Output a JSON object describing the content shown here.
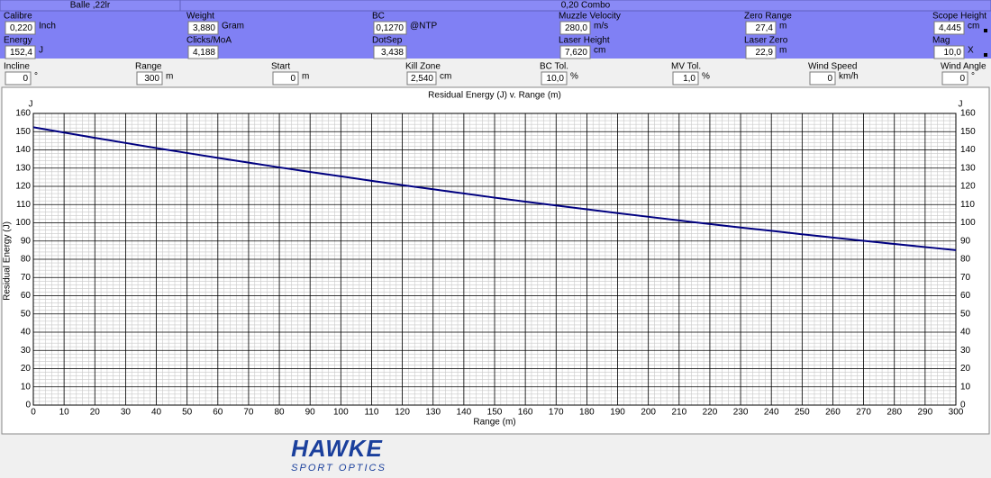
{
  "top_bar": [
    "Balle ,22lr",
    "0,20 Combo"
  ],
  "blue_fields": [
    {
      "label": "Calibre",
      "value": "0,220",
      "unit": "Inch"
    },
    {
      "label": "Weight",
      "value": "3,880",
      "unit": "Gram"
    },
    {
      "label": "BC",
      "value": "0,1270",
      "unit": "@NTP"
    },
    {
      "label": "Muzzle Velocity",
      "value": "280,0",
      "unit": "m/s"
    },
    {
      "label": "Zero Range",
      "value": "27,4",
      "unit": "m"
    },
    {
      "label": "Scope Height",
      "value": "4,445",
      "unit": "cm"
    },
    {
      "label": "Energy",
      "value": "152,4",
      "unit": "J"
    },
    {
      "label": "Clicks/MoA",
      "value": "4,188"
    },
    {
      "label": "DotSep",
      "value": "3,438"
    },
    {
      "label": "Laser Height",
      "value": "7,620",
      "unit": "cm"
    },
    {
      "label": "Laser Zero",
      "value": "22,9",
      "unit": "m"
    },
    {
      "label": "Mag",
      "value": "10,0",
      "unit": "X"
    }
  ],
  "gray_fields": [
    {
      "label": "Incline",
      "value": "0",
      "unit": "°"
    },
    {
      "label": "Range",
      "value": "300",
      "unit": "m"
    },
    {
      "label": "Start",
      "value": "0",
      "unit": "m"
    },
    {
      "label": "Kill Zone",
      "value": "2,540",
      "unit": "cm"
    },
    {
      "label": "BC Tol.",
      "value": "10,0",
      "unit": "%"
    },
    {
      "label": "MV Tol.",
      "value": "1,0",
      "unit": "%"
    },
    {
      "label": "Wind Speed",
      "value": "0",
      "unit": "km/h"
    },
    {
      "label": "Wind Angle",
      "value": "0",
      "unit": "°"
    }
  ],
  "logo": {
    "brand": "HAWKE",
    "tagline": "SPORT OPTICS"
  },
  "chart_data": {
    "type": "line",
    "title": "Residual Energy (J) v. Range (m)",
    "x_label": "Range (m)",
    "y_label": "Residual Energy (J)",
    "y_unit": "J",
    "x": [
      0,
      10,
      20,
      30,
      40,
      50,
      60,
      70,
      80,
      90,
      100,
      110,
      120,
      130,
      140,
      150,
      160,
      170,
      180,
      190,
      200,
      210,
      220,
      230,
      240,
      250,
      260,
      270,
      280,
      290,
      300
    ],
    "values": [
      152.4,
      149.5,
      146.6,
      143.8,
      141.0,
      138.3,
      135.6,
      133.0,
      130.4,
      127.9,
      125.5,
      123.0,
      120.7,
      118.4,
      116.1,
      113.8,
      111.6,
      109.5,
      107.4,
      105.3,
      103.3,
      101.3,
      99.3,
      97.4,
      95.6,
      93.7,
      91.9,
      90.1,
      88.4,
      86.7,
      85.0
    ],
    "color": "#000080",
    "xlim": [
      0,
      300
    ],
    "xticks": [
      0,
      10,
      20,
      30,
      40,
      50,
      60,
      70,
      80,
      90,
      100,
      110,
      120,
      130,
      140,
      150,
      160,
      170,
      180,
      190,
      200,
      210,
      220,
      230,
      240,
      250,
      260,
      270,
      280,
      290,
      300
    ],
    "ylim": [
      0,
      160
    ],
    "yticks": [
      0,
      10,
      20,
      30,
      40,
      50,
      60,
      70,
      80,
      90,
      100,
      110,
      120,
      130,
      140,
      150,
      160
    ],
    "grid": true
  }
}
